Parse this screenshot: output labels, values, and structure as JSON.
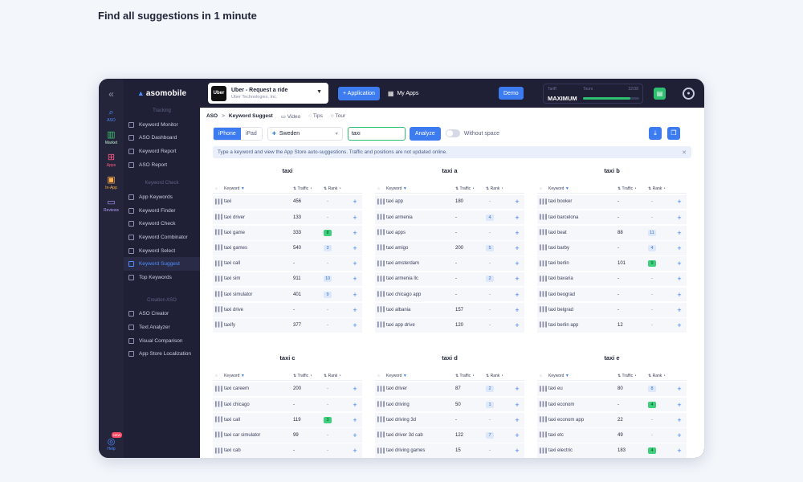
{
  "headline": "Find all suggestions in 1 minute",
  "rail": {
    "items": [
      {
        "label": "ASO",
        "icon": "search-icon"
      },
      {
        "label": "Market",
        "icon": "bar-chart-icon"
      },
      {
        "label": "Apps",
        "icon": "grid-icon"
      },
      {
        "label": "In-App",
        "icon": "bag-icon"
      },
      {
        "label": "Reviews",
        "icon": "chat-icon"
      }
    ],
    "help": "Help",
    "help_badge": "NEW"
  },
  "brand": "asomobile",
  "sidebar": {
    "tracking_label": "Tracking",
    "tracking": [
      "Keyword Monitor",
      "ASO Dashboard",
      "Keyword Report",
      "ASO Report"
    ],
    "check_label": "Keyword Check",
    "check": [
      "App Keywords",
      "Keyword Finder",
      "Keyword Check",
      "Keyword Combinator",
      "Keyword Select",
      "Keyword Suggest",
      "Top Keywords"
    ],
    "creation_label": "Creation ASO",
    "creation": [
      "ASO Creator",
      "Text Analyzer",
      "Visual Comparison",
      "App Store Localization"
    ]
  },
  "topbar": {
    "app_logo": "Uber",
    "app_name": "Uber - Request a ride",
    "app_dev": "Uber Technologies, Inc.",
    "add_app": "+ Application",
    "my_apps": "My Apps",
    "demo": "Demo",
    "tariff_label": "Tariff",
    "tariff_value": "MAXIMUM",
    "tours_label": "Tours",
    "tours_value": "32/38",
    "tours_fraction": 0.84
  },
  "breadcrumb": {
    "root": "ASO",
    "current": "Keyword Suggest",
    "video": "Video",
    "tips": "Tips",
    "tour": "Tour"
  },
  "toolbar": {
    "iphone": "iPhone",
    "ipad": "iPad",
    "country": "Sweden",
    "keyword": "taxi",
    "analyze": "Analyze",
    "without_space": "Without space"
  },
  "info": "Type a keyword and view the App Store auto-suggestions. Traffic and positions are not updated online.",
  "columns": {
    "keyword": "Keyword",
    "traffic": "Traffic",
    "rank": "Rank"
  },
  "cards": [
    {
      "title": "taxi",
      "rows": [
        [
          "taxi",
          "456",
          "-",
          ""
        ],
        [
          "taxi driver",
          "133",
          "-",
          ""
        ],
        [
          "taxi game",
          "333",
          "8",
          "g"
        ],
        [
          "taxi games",
          "540",
          "3",
          "b"
        ],
        [
          "taxi call",
          "-",
          "-",
          ""
        ],
        [
          "taxi sim",
          "911",
          "10",
          "b"
        ],
        [
          "taxi simulator",
          "401",
          "9",
          "b"
        ],
        [
          "taxi drive",
          "-",
          "-",
          ""
        ],
        [
          "taxify",
          "377",
          "-",
          ""
        ]
      ]
    },
    {
      "title": "taxi a",
      "rows": [
        [
          "taxi app",
          "180",
          "-",
          ""
        ],
        [
          "taxi armenia",
          "-",
          "4",
          "b"
        ],
        [
          "taxi apps",
          "-",
          "-",
          ""
        ],
        [
          "taxi amigo",
          "200",
          "5",
          "b"
        ],
        [
          "taxi amsterdam",
          "-",
          "-",
          ""
        ],
        [
          "taxi armenia llc",
          "-",
          "2",
          "b"
        ],
        [
          "taxi chicago app",
          "-",
          "-",
          ""
        ],
        [
          "taxi albania",
          "157",
          "-",
          ""
        ],
        [
          "taxi app drive",
          "120",
          "-",
          ""
        ]
      ]
    },
    {
      "title": "taxi b",
      "rows": [
        [
          "taxi booker",
          "-",
          "-",
          ""
        ],
        [
          "taxi barcelona",
          "-",
          "-",
          ""
        ],
        [
          "taxi beat",
          "88",
          "11",
          "b"
        ],
        [
          "taxi barby",
          "-",
          "4",
          "b"
        ],
        [
          "taxi berlin",
          "101",
          "9",
          "g"
        ],
        [
          "taxi bavaria",
          "-",
          "-",
          ""
        ],
        [
          "taxi beograd",
          "-",
          "-",
          ""
        ],
        [
          "taxi belgrad",
          "-",
          "-",
          ""
        ],
        [
          "taxi berlin app",
          "12",
          "-",
          ""
        ]
      ]
    },
    {
      "title": "taxi c",
      "rows": [
        [
          "taxi careem",
          "200",
          "-",
          ""
        ],
        [
          "taxi chicago",
          "-",
          "-",
          ""
        ],
        [
          "taxi call",
          "119",
          "3",
          "g"
        ],
        [
          "taxi car simulator",
          "99",
          "-",
          ""
        ],
        [
          "taxi cab",
          "-",
          "-",
          ""
        ]
      ]
    },
    {
      "title": "taxi d",
      "rows": [
        [
          "taxi driver",
          "87",
          "2",
          "b"
        ],
        [
          "taxi driving",
          "50",
          "1",
          "b"
        ],
        [
          "taxi driving 3d",
          "-",
          "-",
          ""
        ],
        [
          "taxi driver 3d cab",
          "122",
          "7",
          "b"
        ],
        [
          "taxi driving games",
          "15",
          "-",
          ""
        ]
      ]
    },
    {
      "title": "taxi e",
      "rows": [
        [
          "taxi eu",
          "80",
          "8",
          "b"
        ],
        [
          "taxi econom",
          "-",
          "4",
          "g"
        ],
        [
          "taxi econom app",
          "22",
          "-",
          ""
        ],
        [
          "taxi etc",
          "49",
          "-",
          ""
        ],
        [
          "taxi electric",
          "183",
          "4",
          "g"
        ]
      ]
    }
  ]
}
